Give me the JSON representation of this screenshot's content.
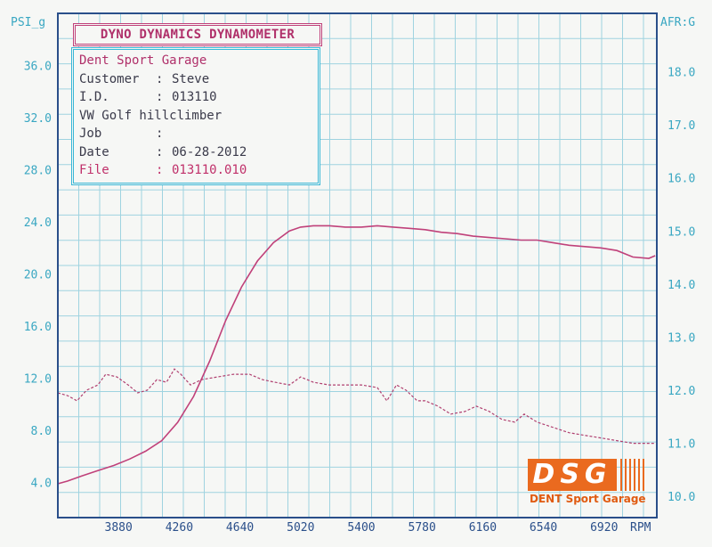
{
  "chart_data": {
    "type": "line",
    "left_axis_label": "PSI_g",
    "right_axis_label": "AFR:G",
    "x_unit": "RPM",
    "x_ticks": [
      3880,
      4260,
      4640,
      5020,
      5400,
      5780,
      6160,
      6540,
      6920
    ],
    "x_range": [
      3500,
      7250
    ],
    "left_ticks": [
      "4.0",
      "8.0",
      "12.0",
      "16.0",
      "20.0",
      "24.0",
      "28.0",
      "32.0",
      "36.0"
    ],
    "right_ticks": [
      "10.0",
      "11.0",
      "12.0",
      "13.0",
      "14.0",
      "15.0",
      "16.0",
      "17.0",
      "18.0"
    ],
    "left_range": [
      1.3,
      40.0
    ],
    "right_range": [
      9.6,
      19.1
    ],
    "grid": true,
    "series": [
      {
        "axis": "left",
        "style": "solid",
        "color": "#c0417a",
        "x": [
          3500,
          3560,
          3650,
          3750,
          3850,
          3950,
          4050,
          4150,
          4250,
          4350,
          4450,
          4550,
          4650,
          4750,
          4850,
          4950,
          5020,
          5100,
          5200,
          5300,
          5400,
          5500,
          5600,
          5700,
          5800,
          5900,
          6000,
          6100,
          6200,
          6300,
          6400,
          6500,
          6600,
          6700,
          6800,
          6900,
          7000,
          7100,
          7200,
          7240
        ],
        "y": [
          3.9,
          4.1,
          4.5,
          4.9,
          5.3,
          5.8,
          6.4,
          7.2,
          8.6,
          10.6,
          13.3,
          16.4,
          19.0,
          21.0,
          22.4,
          23.3,
          23.6,
          23.7,
          23.7,
          23.6,
          23.6,
          23.7,
          23.6,
          23.5,
          23.4,
          23.2,
          23.1,
          22.9,
          22.8,
          22.7,
          22.6,
          22.6,
          22.4,
          22.2,
          22.1,
          22.0,
          21.8,
          21.3,
          21.2,
          21.4
        ]
      },
      {
        "axis": "right",
        "style": "dashed",
        "color": "#b04070",
        "x": [
          3500,
          3560,
          3620,
          3680,
          3750,
          3800,
          3870,
          3940,
          4000,
          4060,
          4120,
          4180,
          4230,
          4270,
          4330,
          4400,
          4500,
          4600,
          4700,
          4780,
          4860,
          4950,
          5020,
          5100,
          5200,
          5300,
          5400,
          5500,
          5560,
          5620,
          5680,
          5750,
          5800,
          5880,
          5960,
          6050,
          6120,
          6200,
          6280,
          6360,
          6420,
          6500,
          6600,
          6700,
          6800,
          6900,
          7000,
          7100,
          7200,
          7240
        ],
        "y": [
          11.95,
          11.9,
          11.8,
          12.0,
          12.1,
          12.3,
          12.25,
          12.1,
          11.95,
          12.0,
          12.2,
          12.15,
          12.4,
          12.3,
          12.1,
          12.2,
          12.25,
          12.3,
          12.3,
          12.2,
          12.15,
          12.1,
          12.25,
          12.15,
          12.1,
          12.1,
          12.1,
          12.05,
          11.8,
          12.1,
          12.0,
          11.8,
          11.8,
          11.7,
          11.55,
          11.6,
          11.7,
          11.6,
          11.45,
          11.4,
          11.55,
          11.4,
          11.3,
          11.2,
          11.15,
          11.1,
          11.05,
          11.0,
          11.0,
          11.0
        ]
      }
    ]
  },
  "header": {
    "title": "DYNO DYNAMICS DYNAMOMETER"
  },
  "info": {
    "shop": "Dent Sport Garage",
    "rows": [
      {
        "key": "Customer",
        "sep": ":",
        "value": "Steve"
      },
      {
        "key": "I.D.",
        "sep": ":",
        "value": "013110"
      },
      {
        "key": "VW Golf hillclimber",
        "sep": "",
        "value": ""
      },
      {
        "key": "Job",
        "sep": ":",
        "value": ""
      },
      {
        "key": "Date",
        "sep": ":",
        "value": "06-28-2012"
      },
      {
        "key": "File",
        "sep": ":",
        "value": "013110.010"
      }
    ]
  },
  "logo": {
    "mark": "DSG",
    "tagline": "DENT Sport Garage",
    "color": "#ea6a1f"
  }
}
